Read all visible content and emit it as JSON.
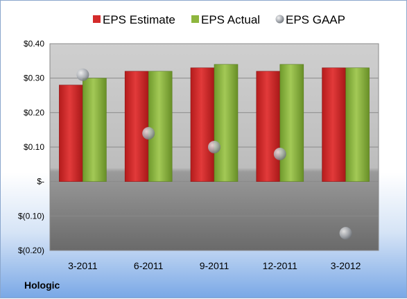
{
  "company": "Hologic",
  "colors": {
    "estimate": "#d42b2b",
    "actual": "#8eb63e",
    "gaap": "#b8bcc2",
    "plot_top": "#c8c8c8",
    "plot_bottom": "#6e6e6e"
  },
  "chart_data": {
    "type": "bar",
    "categories": [
      "3-2011",
      "6-2011",
      "9-2011",
      "12-2011",
      "3-2012"
    ],
    "series": [
      {
        "name": "EPS Estimate",
        "values": [
          0.28,
          0.32,
          0.33,
          0.32,
          0.33
        ],
        "mark": "bar"
      },
      {
        "name": "EPS Actual",
        "values": [
          0.3,
          0.32,
          0.34,
          0.34,
          0.33
        ],
        "mark": "bar"
      },
      {
        "name": "EPS GAAP",
        "values": [
          0.31,
          0.14,
          0.1,
          0.08,
          -0.15
        ],
        "mark": "sphere"
      }
    ],
    "ylim": [
      -0.2,
      0.4
    ],
    "yticks": [
      0.4,
      0.3,
      0.2,
      0.1,
      0.0,
      -0.1,
      -0.2
    ],
    "ytick_labels": [
      "$0.40",
      "$0.30",
      "$0.20",
      "$0.10",
      "$-",
      "$(0.10)",
      "$(0.20)"
    ],
    "title": "",
    "xlabel": "",
    "ylabel": "",
    "grid": true,
    "legend_position": "top"
  }
}
